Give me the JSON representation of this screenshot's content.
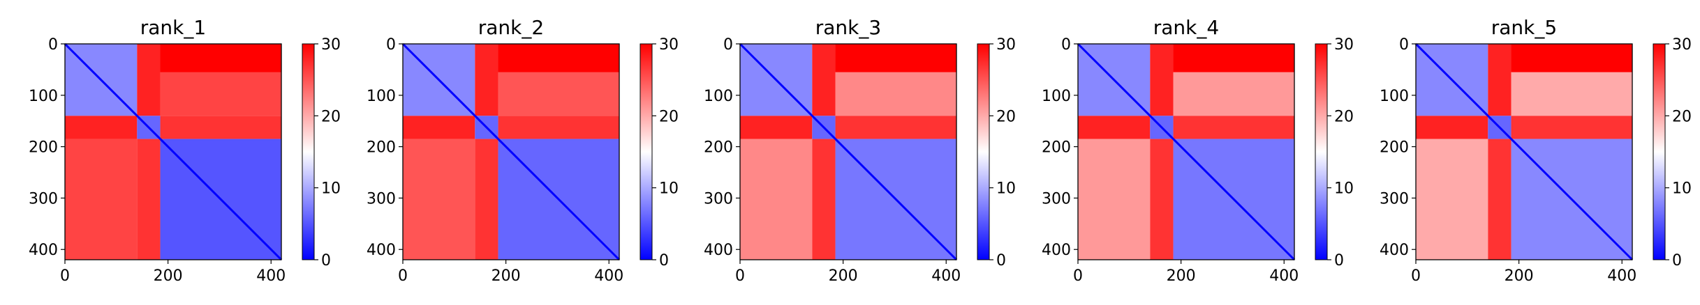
{
  "chart_data": {
    "type": "heatmap",
    "colormap": [
      "#0000ff",
      "#ffffff",
      "#ff0000"
    ],
    "colorbar": {
      "range": [
        0,
        30
      ],
      "ticks": [
        0,
        10,
        20,
        30
      ]
    },
    "axes": {
      "xlim": [
        0,
        420
      ],
      "ylim": [
        420,
        0
      ],
      "xticks": [
        0,
        200,
        400
      ],
      "yticks": [
        0,
        100,
        200,
        300,
        400
      ]
    },
    "domains": [
      {
        "name": "",
        "range": [
          0,
          140
        ]
      },
      {
        "name": "",
        "range": [
          140,
          185
        ]
      },
      {
        "name": "",
        "range": [
          185,
          420
        ]
      }
    ],
    "block_values": {
      "d1_d1": 8,
      "d1_d2": 28,
      "d1_d3": 25,
      "d2_d2": 6,
      "d2_d3": 27,
      "d3_d3": 6,
      "upper_band": 30
    },
    "panels": [
      {
        "title": "rank_1",
        "d1_d3": 26,
        "d3_d3": 5
      },
      {
        "title": "rank_2",
        "d1_d3": 25,
        "d3_d3": 6
      },
      {
        "title": "rank_3",
        "d1_d3": 22,
        "d3_d3": 7
      },
      {
        "title": "rank_4",
        "d1_d3": 21,
        "d3_d3": 7
      },
      {
        "title": "rank_5",
        "d1_d3": 20,
        "d3_d3": 8
      }
    ]
  }
}
